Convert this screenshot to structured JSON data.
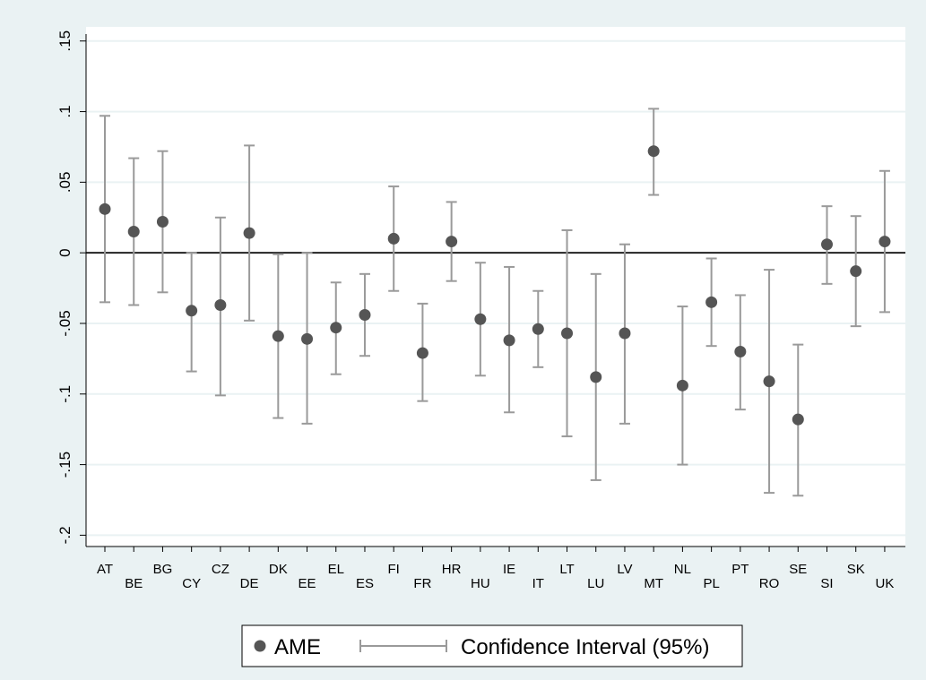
{
  "chart_data": {
    "type": "scatter",
    "title": "",
    "xlabel": "",
    "ylabel": "",
    "ylim": [
      -0.2,
      0.15
    ],
    "yticks": [
      {
        "value": 0.15,
        "label": ".15"
      },
      {
        "value": 0.1,
        "label": ".1"
      },
      {
        "value": 0.05,
        "label": ".05"
      },
      {
        "value": 0,
        "label": "0"
      },
      {
        "value": -0.05,
        "label": "-.05"
      },
      {
        "value": -0.1,
        "label": "-.1"
      },
      {
        "value": -0.15,
        "label": "-.15"
      },
      {
        "value": -0.2,
        "label": "-.2"
      }
    ],
    "grid": true,
    "reference_line": 0,
    "legend_position": "bottom",
    "categories": [
      "AT",
      "BE",
      "BG",
      "CY",
      "CZ",
      "DE",
      "DK",
      "EE",
      "EL",
      "ES",
      "FI",
      "FR",
      "HR",
      "HU",
      "IE",
      "IT",
      "LT",
      "LU",
      "LV",
      "MT",
      "NL",
      "PL",
      "PT",
      "RO",
      "SE",
      "SI",
      "SK",
      "UK"
    ],
    "series": [
      {
        "name": "AME",
        "values": [
          0.031,
          0.015,
          0.022,
          -0.041,
          -0.037,
          0.014,
          -0.059,
          -0.061,
          -0.053,
          -0.044,
          0.01,
          -0.071,
          0.008,
          -0.047,
          -0.062,
          -0.054,
          -0.057,
          -0.088,
          -0.057,
          0.072,
          -0.094,
          -0.035,
          -0.07,
          -0.091,
          -0.118,
          0.006,
          -0.013,
          0.008
        ]
      },
      {
        "name": "Confidence Interval (95%)",
        "lower": [
          -0.035,
          -0.037,
          -0.028,
          -0.084,
          -0.101,
          -0.048,
          -0.117,
          -0.121,
          -0.086,
          -0.073,
          -0.027,
          -0.105,
          -0.02,
          -0.087,
          -0.113,
          -0.081,
          -0.13,
          -0.161,
          -0.121,
          0.041,
          -0.15,
          -0.066,
          -0.111,
          -0.17,
          -0.172,
          -0.022,
          -0.052,
          -0.042
        ],
        "upper": [
          0.097,
          0.067,
          0.072,
          0.0,
          0.025,
          0.076,
          -0.001,
          0.0,
          -0.021,
          -0.015,
          0.047,
          -0.036,
          0.036,
          -0.007,
          -0.01,
          -0.027,
          0.016,
          -0.015,
          0.006,
          0.102,
          -0.038,
          -0.004,
          -0.03,
          -0.012,
          -0.065,
          0.033,
          0.026,
          0.058
        ]
      }
    ],
    "colors": {
      "background": "#eaf2f3",
      "plot_area": "#ffffff",
      "grid": "#eaf2f3",
      "point": "#555555",
      "ci": "#9a9a9a",
      "zero_line": "#222222"
    }
  }
}
